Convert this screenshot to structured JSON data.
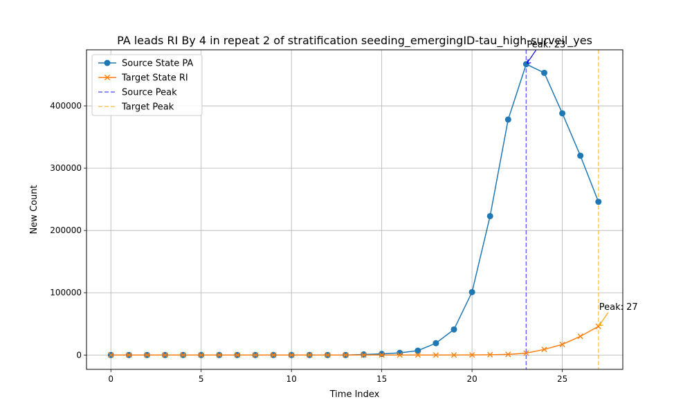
{
  "chart_data": {
    "type": "line",
    "title": "PA leads RI By 4 in repeat 2 of stratification seeding_emergingID-tau_high-surveil_yes",
    "xlabel": "Time Index",
    "ylabel": "New Count",
    "xlim": [
      -1.35,
      28.35
    ],
    "ylim": [
      -23000,
      490000
    ],
    "x_ticks": [
      0,
      5,
      10,
      15,
      20,
      25
    ],
    "y_ticks": [
      0,
      100000,
      200000,
      300000,
      400000
    ],
    "grid": true,
    "legend_position": "top-left",
    "x": [
      0,
      1,
      2,
      3,
      4,
      5,
      6,
      7,
      8,
      9,
      10,
      11,
      12,
      13,
      14,
      15,
      16,
      17,
      18,
      19,
      20,
      21,
      22,
      23,
      24,
      25,
      26,
      27
    ],
    "series": [
      {
        "name": "Source State PA",
        "color": "#1f77b4",
        "marker": "circle",
        "values": [
          0,
          0,
          0,
          0,
          0,
          0,
          0,
          0,
          0,
          0,
          0,
          0,
          0,
          0,
          900,
          1800,
          3500,
          7000,
          19000,
          41000,
          101000,
          223000,
          378000,
          467000,
          453000,
          388000,
          320000,
          246000
        ]
      },
      {
        "name": "Target State RI",
        "color": "#ff7f0e",
        "marker": "x",
        "values": [
          0,
          0,
          0,
          0,
          0,
          0,
          0,
          0,
          0,
          0,
          0,
          0,
          0,
          0,
          0,
          0,
          0,
          0,
          0,
          0,
          200,
          500,
          1000,
          3000,
          9000,
          17000,
          30000,
          46000
        ]
      }
    ],
    "peak_lines": [
      {
        "name": "Source Peak",
        "x": 23,
        "color": "#0000ff",
        "opacity": 0.6,
        "series_index": 0
      },
      {
        "name": "Target Peak",
        "x": 27,
        "color": "#ffa500",
        "opacity": 0.6,
        "series_index": 1
      }
    ],
    "annotations": [
      {
        "text": "Peak: 23",
        "x": 23,
        "y": 467000,
        "color": "#0000ff"
      },
      {
        "text": "Peak: 27",
        "x": 27,
        "y": 46000,
        "color": "#ffa500"
      }
    ]
  }
}
